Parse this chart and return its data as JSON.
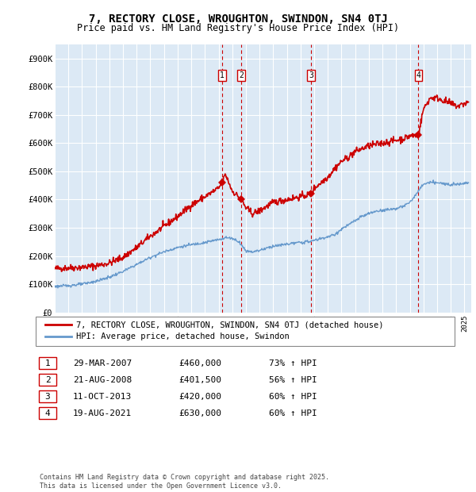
{
  "title": "7, RECTORY CLOSE, WROUGHTON, SWINDON, SN4 0TJ",
  "subtitle": "Price paid vs. HM Land Registry's House Price Index (HPI)",
  "ylim": [
    0,
    950000
  ],
  "yticks": [
    0,
    100000,
    200000,
    300000,
    400000,
    500000,
    600000,
    700000,
    800000,
    900000
  ],
  "plot_background": "#dce9f5",
  "grid_color": "#ffffff",
  "red_line_color": "#cc0000",
  "blue_line_color": "#6699cc",
  "vline_color": "#cc0000",
  "transactions": [
    {
      "label": "1",
      "date": "2007-03-29",
      "price": 460000,
      "pct": "73%",
      "x_approx": 2007.25
    },
    {
      "label": "2",
      "date": "2008-08-21",
      "price": 401500,
      "pct": "56%",
      "x_approx": 2008.65
    },
    {
      "label": "3",
      "date": "2013-10-11",
      "price": 420000,
      "pct": "60%",
      "x_approx": 2013.78
    },
    {
      "label": "4",
      "date": "2021-08-19",
      "price": 630000,
      "pct": "60%",
      "x_approx": 2021.63
    }
  ],
  "legend_label_red": "7, RECTORY CLOSE, WROUGHTON, SWINDON, SN4 0TJ (detached house)",
  "legend_label_blue": "HPI: Average price, detached house, Swindon",
  "table_rows": [
    {
      "num": "1",
      "date": "29-MAR-2007",
      "price": "£460,000",
      "pct": "73% ↑ HPI"
    },
    {
      "num": "2",
      "date": "21-AUG-2008",
      "price": "£401,500",
      "pct": "56% ↑ HPI"
    },
    {
      "num": "3",
      "date": "11-OCT-2013",
      "price": "£420,000",
      "pct": "60% ↑ HPI"
    },
    {
      "num": "4",
      "date": "19-AUG-2021",
      "price": "£630,000",
      "pct": "60% ↑ HPI"
    }
  ],
  "footer": "Contains HM Land Registry data © Crown copyright and database right 2025.\nThis data is licensed under the Open Government Licence v3.0.",
  "xmin": 1995.0,
  "xmax": 2025.5,
  "red_waypoints_x": [
    1995.0,
    1996.0,
    1997.0,
    1998.0,
    1999.0,
    2000.0,
    2001.0,
    2002.0,
    2003.0,
    2004.0,
    2005.0,
    2006.0,
    2007.0,
    2007.25,
    2007.5,
    2008.0,
    2008.65,
    2009.0,
    2009.5,
    2010.0,
    2010.5,
    2011.0,
    2012.0,
    2013.0,
    2013.78,
    2014.0,
    2014.5,
    2015.0,
    2015.5,
    2016.0,
    2016.5,
    2017.0,
    2017.5,
    2018.0,
    2018.5,
    2019.0,
    2019.5,
    2020.0,
    2020.5,
    2021.0,
    2021.63,
    2022.0,
    2022.5,
    2023.0,
    2023.5,
    2024.0,
    2024.5,
    2025.0,
    2025.3
  ],
  "red_waypoints_y": [
    155000,
    158000,
    160000,
    165000,
    175000,
    195000,
    230000,
    270000,
    305000,
    340000,
    380000,
    410000,
    440000,
    460000,
    490000,
    430000,
    401500,
    370000,
    350000,
    360000,
    375000,
    390000,
    400000,
    410000,
    420000,
    440000,
    460000,
    480000,
    510000,
    535000,
    550000,
    570000,
    580000,
    590000,
    595000,
    600000,
    605000,
    610000,
    615000,
    625000,
    630000,
    720000,
    760000,
    760000,
    750000,
    740000,
    730000,
    740000,
    745000
  ],
  "blue_waypoints_x": [
    1995.0,
    1996.0,
    1997.0,
    1998.0,
    1999.0,
    2000.0,
    2001.0,
    2002.0,
    2003.0,
    2004.0,
    2005.0,
    2006.0,
    2007.0,
    2007.5,
    2008.0,
    2008.5,
    2009.0,
    2009.5,
    2010.0,
    2010.5,
    2011.0,
    2011.5,
    2012.0,
    2012.5,
    2013.0,
    2013.5,
    2014.0,
    2014.5,
    2015.0,
    2015.5,
    2016.0,
    2016.5,
    2017.0,
    2017.5,
    2018.0,
    2018.5,
    2019.0,
    2019.5,
    2020.0,
    2020.5,
    2021.0,
    2021.5,
    2022.0,
    2022.5,
    2023.0,
    2023.5,
    2024.0,
    2024.5,
    2025.0,
    2025.3
  ],
  "blue_waypoints_y": [
    92000,
    95000,
    100000,
    110000,
    125000,
    145000,
    170000,
    195000,
    215000,
    230000,
    240000,
    248000,
    258000,
    265000,
    263000,
    250000,
    218000,
    215000,
    220000,
    228000,
    235000,
    238000,
    242000,
    245000,
    248000,
    250000,
    255000,
    262000,
    268000,
    275000,
    295000,
    310000,
    325000,
    340000,
    350000,
    358000,
    362000,
    365000,
    368000,
    375000,
    390000,
    420000,
    455000,
    460000,
    460000,
    455000,
    455000,
    455000,
    458000,
    460000
  ]
}
